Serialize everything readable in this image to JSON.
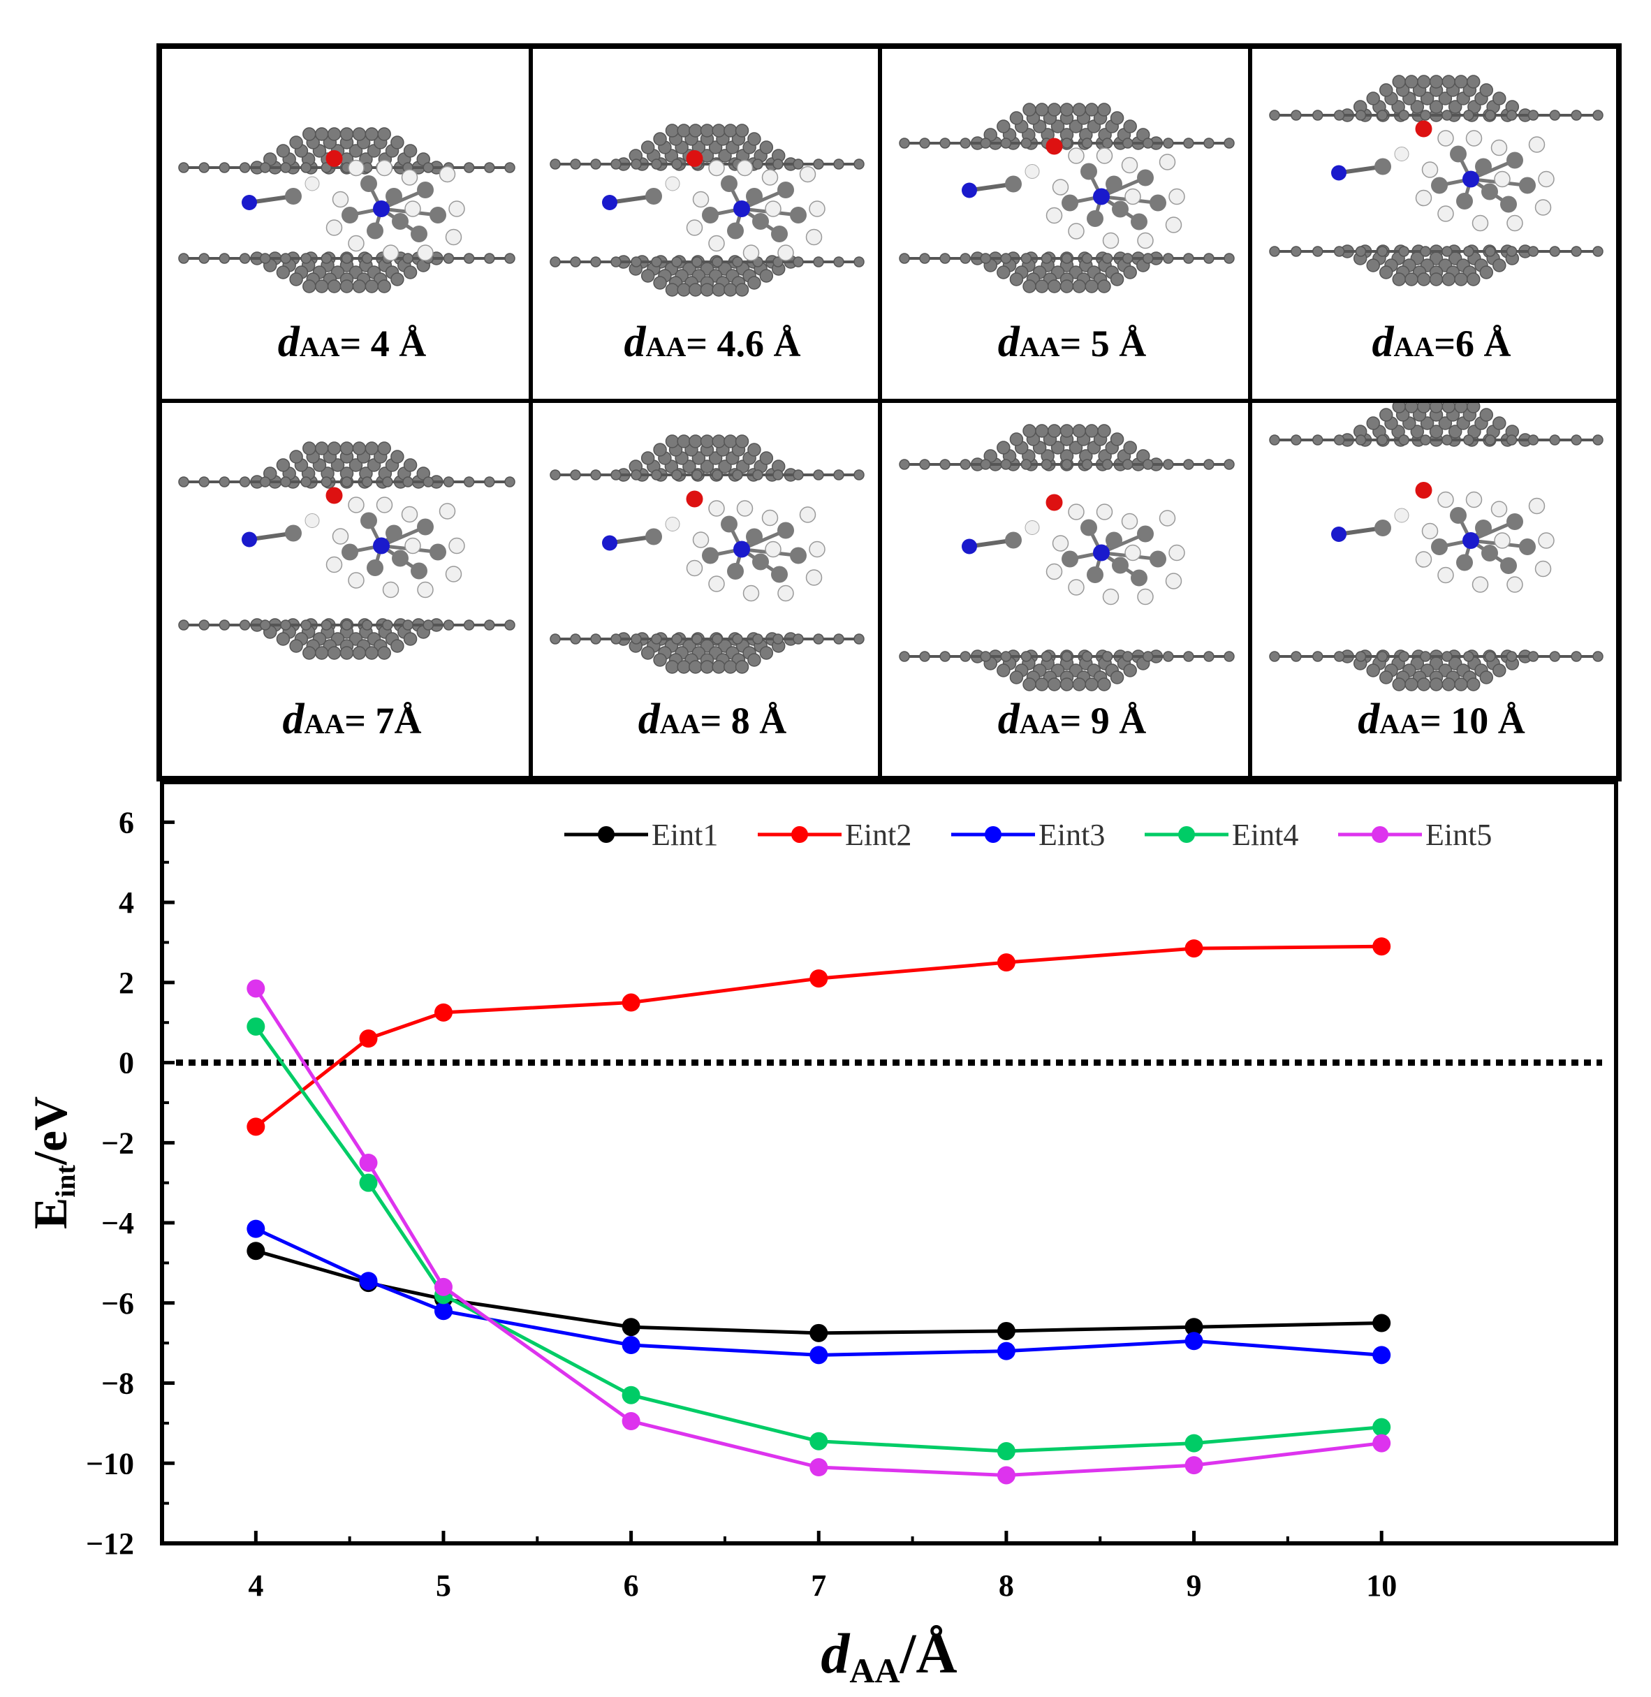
{
  "panels": {
    "label_prefix": "d",
    "label_subscript": "AA",
    "items": [
      {
        "value_text": "= 4 Å",
        "d": 4
      },
      {
        "value_text": "= 4.6 Å",
        "d": 4.6
      },
      {
        "value_text": "= 5 Å",
        "d": 5
      },
      {
        "value_text": "=6 Å",
        "d": 6
      },
      {
        "value_text": "= 7Å",
        "d": 7
      },
      {
        "value_text": "= 8 Å",
        "d": 8
      },
      {
        "value_text": "= 9 Å",
        "d": 9
      },
      {
        "value_text": "= 10 Å",
        "d": 10
      }
    ]
  },
  "colors": {
    "carbon": "#7a7a7a",
    "hydrogen": "#f0f0f0",
    "nitrogen": "#1a1acc",
    "oxygen": "#dd1111",
    "frame": "#000000"
  },
  "chart_data": {
    "type": "line",
    "xlabel_main": "d",
    "xlabel_sub": "AA",
    "xlabel_unit": "/Å",
    "ylabel_main": "E",
    "ylabel_sub": "int",
    "ylabel_unit": "/eV",
    "xlim": [
      3.5,
      11.25
    ],
    "ylim": [
      -12,
      7
    ],
    "xticks": [
      4,
      5,
      6,
      7,
      8,
      9,
      10
    ],
    "yticks": [
      -12,
      -10,
      -8,
      -6,
      -4,
      -2,
      0,
      2,
      4,
      6
    ],
    "reference_line_y": 0,
    "x": [
      4,
      4.6,
      5,
      6,
      7,
      8,
      9,
      10
    ],
    "series": [
      {
        "name": "Eint1",
        "color": "#000000",
        "values": [
          -4.7,
          -5.5,
          -5.9,
          -6.6,
          -6.75,
          -6.7,
          -6.6,
          -6.5
        ]
      },
      {
        "name": "Eint2",
        "color": "#ff0000",
        "values": [
          -1.6,
          0.6,
          1.25,
          1.5,
          2.1,
          2.5,
          2.85,
          2.9
        ]
      },
      {
        "name": "Eint3",
        "color": "#0000ff",
        "values": [
          -4.15,
          -5.45,
          -6.2,
          -7.05,
          -7.3,
          -7.2,
          -6.95,
          -7.3
        ]
      },
      {
        "name": "Eint4",
        "color": "#00cc66",
        "values": [
          0.9,
          -3.0,
          -5.8,
          -8.3,
          -9.45,
          -9.7,
          -9.5,
          -9.1
        ]
      },
      {
        "name": "Eint5",
        "color": "#dd33ee",
        "values": [
          1.85,
          -2.5,
          -5.6,
          -8.95,
          -10.1,
          -10.3,
          -10.05,
          -9.5
        ]
      }
    ]
  }
}
